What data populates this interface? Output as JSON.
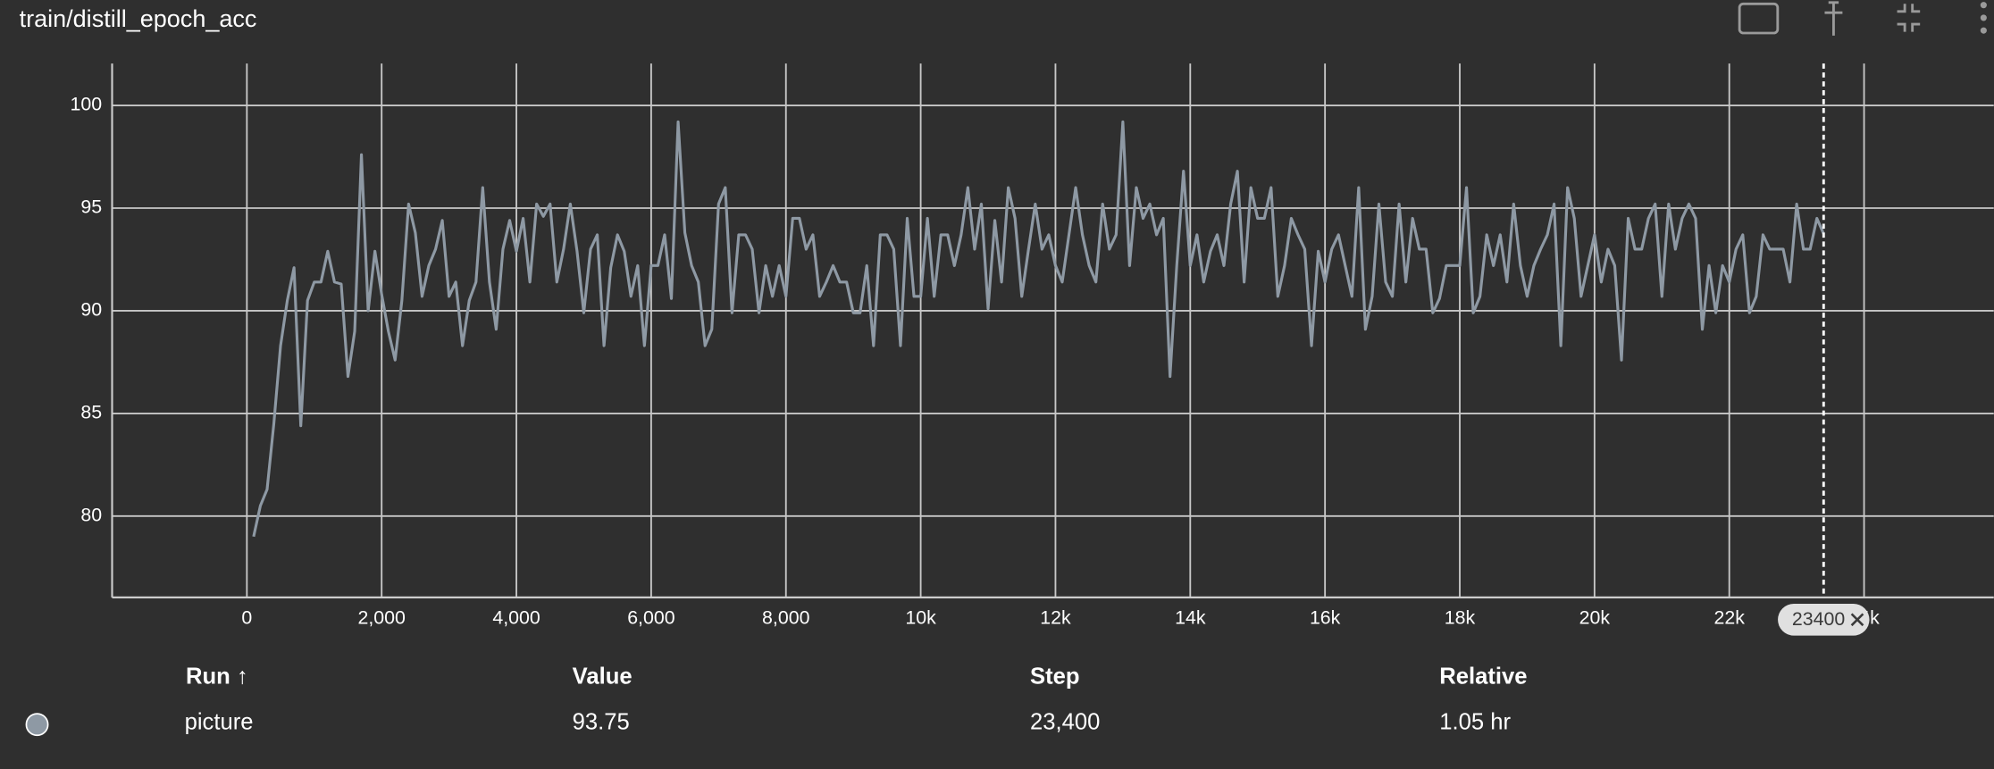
{
  "chart_data": {
    "type": "line",
    "title": "train/distill_epoch_acc",
    "xlim": [
      -2000,
      25925
    ],
    "ylim": [
      76.04,
      102.04
    ],
    "xticks": [
      0,
      {
        "value": 2000,
        "label": "2,000"
      },
      {
        "value": 4000,
        "label": "4,000"
      },
      {
        "value": 6000,
        "label": "6,000"
      },
      {
        "value": 8000,
        "label": "8,000"
      },
      {
        "value": 10000,
        "label": "10k"
      },
      {
        "value": 12000,
        "label": "12k"
      },
      {
        "value": 14000,
        "label": "14k"
      },
      {
        "value": 16000,
        "label": "16k"
      },
      {
        "value": 18000,
        "label": "18k"
      },
      {
        "value": 20000,
        "label": "20k"
      },
      {
        "value": 22000,
        "label": "22k"
      },
      {
        "value": 24000,
        "label": "24k"
      }
    ],
    "yticks": [
      80,
      85,
      90,
      95,
      100
    ],
    "grid": true,
    "cursor_step": 23400,
    "x": [
      100,
      200,
      300,
      400,
      500,
      600,
      700,
      800,
      900,
      1000,
      1100,
      1200,
      1300,
      1400,
      1500,
      1600,
      1700,
      1800,
      1900,
      2000,
      2100,
      2200,
      2300,
      2400,
      2500,
      2600,
      2700,
      2800,
      2900,
      3000,
      3100,
      3200,
      3300,
      3400,
      3500,
      3600,
      3700,
      3800,
      3900,
      4000,
      4100,
      4200,
      4300,
      4400,
      4500,
      4600,
      4700,
      4800,
      4900,
      5000,
      5100,
      5200,
      5300,
      5400,
      5500,
      5600,
      5700,
      5800,
      5900,
      6000,
      6100,
      6200,
      6300,
      6400,
      6500,
      6600,
      6700,
      6800,
      6900,
      7000,
      7100,
      7200,
      7300,
      7400,
      7500,
      7600,
      7700,
      7800,
      7900,
      8000,
      8100,
      8200,
      8300,
      8400,
      8500,
      8600,
      8700,
      8800,
      8900,
      9000,
      9100,
      9200,
      9300,
      9400,
      9500,
      9600,
      9700,
      9800,
      9900,
      10000,
      10100,
      10200,
      10300,
      10400,
      10500,
      10600,
      10700,
      10800,
      10900,
      11000,
      11100,
      11200,
      11300,
      11400,
      11500,
      11600,
      11700,
      11800,
      11900,
      12000,
      12100,
      12200,
      12300,
      12400,
      12500,
      12600,
      12700,
      12800,
      12900,
      13000,
      13100,
      13200,
      13300,
      13400,
      13500,
      13600,
      13700,
      13800,
      13900,
      14000,
      14100,
      14200,
      14300,
      14400,
      14500,
      14600,
      14700,
      14800,
      14900,
      15000,
      15100,
      15200,
      15300,
      15400,
      15500,
      15600,
      15700,
      15800,
      15900,
      16000,
      16100,
      16200,
      16300,
      16400,
      16500,
      16600,
      16700,
      16800,
      16900,
      17000,
      17100,
      17200,
      17300,
      17400,
      17500,
      17600,
      17700,
      17800,
      17900,
      18000,
      18100,
      18200,
      18300,
      18400,
      18500,
      18600,
      18700,
      18800,
      18900,
      19000,
      19100,
      19200,
      19300,
      19400,
      19500,
      19600,
      19700,
      19800,
      19900,
      20000,
      20100,
      20200,
      20300,
      20400,
      20500,
      20600,
      20700,
      20800,
      20900,
      21000,
      21100,
      21200,
      21300,
      21400,
      21500,
      21600,
      21700,
      21800,
      21900,
      22000,
      22100,
      22200,
      22300,
      22400,
      22500,
      22600,
      22700,
      22800,
      22900,
      23000,
      23100,
      23200,
      23300,
      23400
    ],
    "series": [
      {
        "name": "picture",
        "color": "#8e99a4",
        "values": [
          79.0,
          80.5,
          81.3,
          84.5,
          88.3,
          90.5,
          92.1,
          84.4,
          90.5,
          91.4,
          91.4,
          92.9,
          91.4,
          91.3,
          86.8,
          89.0,
          97.6,
          90.0,
          92.9,
          90.8,
          89.0,
          87.6,
          90.5,
          95.2,
          93.8,
          90.7,
          92.2,
          93.0,
          94.4,
          90.7,
          91.4,
          88.3,
          90.5,
          91.4,
          96.0,
          91.4,
          89.1,
          93.0,
          94.4,
          92.9,
          94.5,
          91.4,
          95.2,
          94.6,
          95.2,
          91.4,
          93.0,
          95.2,
          92.9,
          89.9,
          93.0,
          93.7,
          88.3,
          92.1,
          93.7,
          92.9,
          90.7,
          92.2,
          88.3,
          92.2,
          92.2,
          93.7,
          90.6,
          99.2,
          93.8,
          92.2,
          91.4,
          88.3,
          89.1,
          95.2,
          96.0,
          89.9,
          93.7,
          93.7,
          93.0,
          89.9,
          92.2,
          90.7,
          92.2,
          90.7,
          94.5,
          94.5,
          93.0,
          93.7,
          90.7,
          91.4,
          92.2,
          91.4,
          91.4,
          89.9,
          89.9,
          92.2,
          88.3,
          93.7,
          93.7,
          93.0,
          88.3,
          94.5,
          90.7,
          90.7,
          94.5,
          90.7,
          93.7,
          93.7,
          92.2,
          93.7,
          96.0,
          93.0,
          95.2,
          90.1,
          94.4,
          91.4,
          96.0,
          94.5,
          90.7,
          93.0,
          95.2,
          93.0,
          93.7,
          92.2,
          91.4,
          93.7,
          96.0,
          93.7,
          92.2,
          91.4,
          95.2,
          93.0,
          93.7,
          99.2,
          92.2,
          96.0,
          94.5,
          95.2,
          93.7,
          94.5,
          86.8,
          92.2,
          96.8,
          92.2,
          93.7,
          91.4,
          92.9,
          93.7,
          92.2,
          95.2,
          96.8,
          91.4,
          96.0,
          94.5,
          94.5,
          96.0,
          90.7,
          92.2,
          94.5,
          93.7,
          93.0,
          88.3,
          92.9,
          91.4,
          93.0,
          93.7,
          92.2,
          90.7,
          96.0,
          89.1,
          90.7,
          95.2,
          91.4,
          90.7,
          95.2,
          91.4,
          94.5,
          93.0,
          93.0,
          89.9,
          90.6,
          92.2,
          92.2,
          92.2,
          96.0,
          89.9,
          90.7,
          93.7,
          92.2,
          93.7,
          91.4,
          95.2,
          92.2,
          90.7,
          92.2,
          93.0,
          93.7,
          95.2,
          88.3,
          96.0,
          94.5,
          90.7,
          92.2,
          93.7,
          91.4,
          93.0,
          92.2,
          87.6,
          94.5,
          93.0,
          93.0,
          94.5,
          95.2,
          90.7,
          95.2,
          93.0,
          94.5,
          95.2,
          94.5,
          89.1,
          92.2,
          89.9,
          92.2,
          91.4,
          93.0,
          93.7,
          89.9,
          90.7,
          93.7,
          93.0,
          93.0,
          93.0,
          91.4,
          95.2,
          93.0,
          93.0,
          94.5,
          93.75
        ]
      }
    ]
  },
  "table": {
    "headers": [
      "Run ↑",
      "Value",
      "Step",
      "Relative"
    ],
    "row": [
      "picture",
      "93.75",
      "23,400",
      "1.05 hr"
    ]
  }
}
